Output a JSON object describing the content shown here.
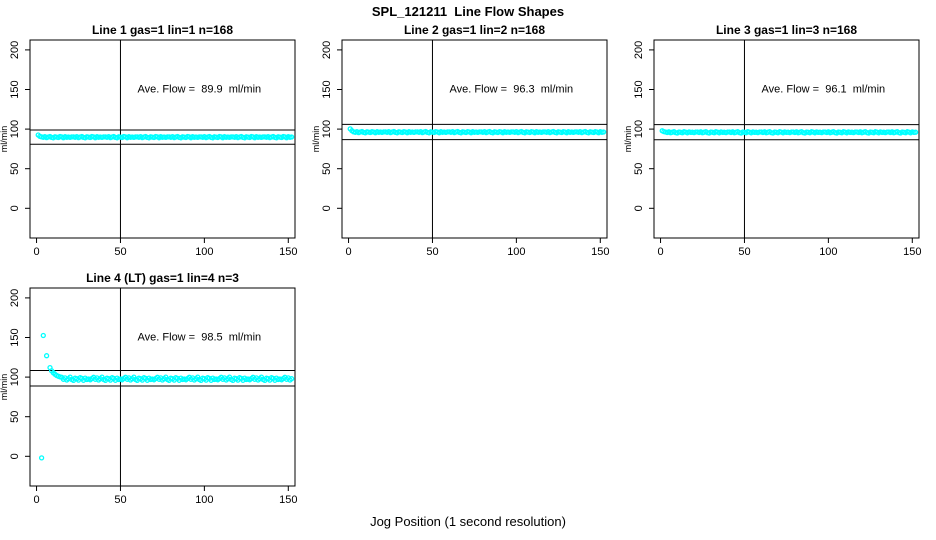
{
  "figure": {
    "title": "SPL_121211  Line Flow Shapes",
    "xlabel": "Jog Position (1 second resolution)",
    "ylabel": "ml/min",
    "point_color": "#00FFFF",
    "axis_color": "#000000",
    "background_color": "#ffffff"
  },
  "chart_data": [
    {
      "type": "scatter",
      "title": "Line 1 gas=1 lin=1 n=168",
      "annotation": "Ave. Flow =  89.9  ml/min",
      "avg_flow_ml_min": 89.9,
      "grid_row": 0,
      "grid_col": 0,
      "xlim": [
        -3.9,
        154.0
      ],
      "ylim": [
        -37.5,
        212.5
      ],
      "x_ticks": [
        0,
        50,
        100,
        150
      ],
      "y_ticks": [
        0,
        50,
        100,
        150,
        200
      ],
      "vline_x": 50,
      "hlines": [
        98.9,
        80.9
      ],
      "annotation_at": {
        "x": 97,
        "y": 146
      },
      "x_start": 1,
      "x_step": 1,
      "y": [
        92.5,
        90.8,
        90.2,
        89.6,
        90.5,
        89.3,
        90.0,
        90.7,
        89.5,
        89.0,
        90.3,
        89.9,
        89.4,
        90.6,
        90.1,
        89.2,
        90.4,
        89.7,
        90.0,
        89.5,
        90.2,
        90.2,
        89.6,
        90.5,
        89.3,
        90.0,
        90.7,
        89.5,
        89.0,
        90.3,
        89.9,
        89.4,
        90.6,
        90.1,
        89.2,
        90.4,
        89.7,
        90.0,
        89.5,
        90.2,
        90.2,
        89.6,
        90.5,
        89.3,
        90.0,
        90.7,
        89.5,
        89.0,
        90.3,
        89.9,
        89.4,
        90.6,
        90.1,
        89.2,
        90.4,
        89.7,
        90.0,
        89.5,
        90.2,
        90.2,
        89.6,
        90.5,
        89.3,
        90.0,
        90.7,
        89.5,
        89.0,
        90.3,
        89.9,
        89.4,
        90.6,
        90.1,
        89.2,
        90.4,
        89.7,
        90.0,
        89.5,
        90.2,
        90.2,
        89.6,
        90.5,
        89.3,
        90.0,
        90.7,
        89.5,
        89.0,
        90.3,
        89.9,
        89.4,
        90.6,
        90.1,
        89.2,
        90.4,
        89.7,
        90.0,
        89.5,
        90.2,
        90.2,
        89.6,
        90.5,
        89.3,
        90.0,
        90.7,
        89.5,
        89.0,
        90.3,
        89.9,
        89.4,
        90.6,
        90.1,
        89.2,
        90.4,
        89.7,
        90.0,
        89.5,
        90.2,
        90.2,
        89.6,
        90.5,
        89.3,
        90.0,
        90.7,
        89.5,
        89.0,
        90.3,
        89.9,
        89.4,
        90.6,
        90.1,
        89.2,
        90.4,
        89.7,
        90.0,
        89.5,
        90.2,
        90.2,
        89.6,
        90.5,
        89.3,
        90.0,
        90.7,
        89.5,
        89.0,
        90.3,
        89.9,
        89.4,
        90.6,
        90.1,
        89.2,
        90.4,
        89.7,
        90.0
      ]
    },
    {
      "type": "scatter",
      "title": "Line 2 gas=1 lin=2 n=168",
      "annotation": "Ave. Flow =  96.3  ml/min",
      "avg_flow_ml_min": 96.3,
      "grid_row": 0,
      "grid_col": 1,
      "xlim": [
        -3.9,
        154.0
      ],
      "ylim": [
        -37.5,
        212.5
      ],
      "x_ticks": [
        0,
        50,
        100,
        150
      ],
      "y_ticks": [
        0,
        50,
        100,
        150,
        200
      ],
      "vline_x": 50,
      "hlines": [
        105.9,
        86.7
      ],
      "annotation_at": {
        "x": 97,
        "y": 146
      },
      "x_start": 1,
      "x_step": 1,
      "y": [
        100.2,
        98.0,
        96.5,
        95.9,
        96.8,
        95.6,
        96.3,
        97.0,
        95.8,
        95.3,
        96.6,
        96.2,
        95.7,
        96.9,
        96.4,
        95.5,
        96.7,
        96.0,
        96.3,
        95.8,
        96.5,
        96.5,
        95.9,
        96.8,
        95.6,
        96.3,
        97.0,
        95.8,
        95.3,
        96.6,
        96.2,
        95.7,
        96.9,
        96.4,
        95.5,
        96.7,
        96.0,
        96.3,
        95.8,
        96.5,
        96.5,
        95.9,
        96.8,
        95.6,
        96.3,
        97.0,
        95.8,
        95.3,
        96.6,
        96.2,
        95.7,
        96.9,
        96.4,
        95.5,
        96.7,
        96.0,
        96.3,
        95.8,
        96.5,
        96.5,
        95.9,
        96.8,
        95.6,
        96.3,
        97.0,
        95.8,
        95.3,
        96.6,
        96.2,
        95.7,
        96.9,
        96.4,
        95.5,
        96.7,
        96.0,
        96.3,
        95.8,
        96.5,
        96.5,
        95.9,
        96.8,
        95.6,
        96.3,
        97.0,
        95.8,
        95.3,
        96.6,
        96.2,
        95.7,
        96.9,
        96.4,
        95.5,
        96.7,
        96.0,
        96.3,
        95.8,
        96.5,
        96.5,
        95.9,
        96.8,
        95.6,
        96.3,
        97.0,
        95.8,
        95.3,
        96.6,
        96.2,
        95.7,
        96.9,
        96.4,
        95.5,
        96.7,
        96.0,
        96.3,
        95.8,
        96.5,
        96.5,
        95.9,
        96.8,
        95.6,
        96.3,
        97.0,
        95.8,
        95.3,
        96.6,
        96.2,
        95.7,
        96.9,
        96.4,
        95.5,
        96.7,
        96.0,
        96.3,
        95.8,
        96.5,
        96.5,
        95.9,
        96.8,
        95.6,
        96.3,
        97.0,
        95.8,
        95.3,
        96.6,
        96.2,
        95.7,
        96.9,
        96.4,
        95.5,
        96.7,
        96.0,
        96.3
      ]
    },
    {
      "type": "scatter",
      "title": "Line 3 gas=1 lin=3 n=168",
      "annotation": "Ave. Flow =  96.1  ml/min",
      "avg_flow_ml_min": 96.1,
      "grid_row": 0,
      "grid_col": 2,
      "xlim": [
        -3.9,
        154.0
      ],
      "ylim": [
        -37.5,
        212.5
      ],
      "x_ticks": [
        0,
        50,
        100,
        150
      ],
      "y_ticks": [
        0,
        50,
        100,
        150,
        200
      ],
      "vline_x": 50,
      "hlines": [
        105.7,
        86.5
      ],
      "annotation_at": {
        "x": 97,
        "y": 146
      },
      "x_start": 1,
      "x_step": 1,
      "y": [
        97.8,
        96.9,
        96.3,
        95.7,
        96.6,
        95.4,
        96.1,
        96.8,
        95.6,
        95.1,
        96.4,
        96.0,
        95.5,
        96.7,
        96.2,
        95.3,
        96.5,
        95.8,
        96.1,
        95.6,
        96.3,
        96.3,
        95.7,
        96.6,
        95.4,
        96.1,
        96.8,
        95.6,
        95.1,
        96.4,
        96.0,
        95.5,
        96.7,
        96.2,
        95.3,
        96.5,
        95.8,
        96.1,
        95.6,
        96.3,
        96.3,
        95.7,
        96.6,
        95.4,
        96.1,
        96.8,
        95.6,
        95.1,
        96.4,
        96.0,
        95.5,
        96.7,
        96.2,
        95.3,
        96.5,
        95.8,
        96.1,
        95.6,
        96.3,
        96.3,
        95.7,
        96.6,
        95.4,
        96.1,
        96.8,
        95.6,
        95.1,
        96.4,
        96.0,
        95.5,
        96.7,
        96.2,
        95.3,
        96.5,
        95.8,
        96.1,
        95.6,
        96.3,
        96.3,
        95.7,
        96.6,
        95.4,
        96.1,
        96.8,
        95.6,
        95.1,
        96.4,
        96.0,
        95.5,
        96.7,
        96.2,
        95.3,
        96.5,
        95.8,
        96.1,
        95.6,
        96.3,
        96.3,
        95.7,
        96.6,
        95.4,
        96.1,
        96.8,
        95.6,
        95.1,
        96.4,
        96.0,
        95.5,
        96.7,
        96.2,
        95.3,
        96.5,
        95.8,
        96.1,
        95.6,
        96.3,
        96.3,
        95.7,
        96.6,
        95.4,
        96.1,
        96.8,
        95.6,
        95.1,
        96.4,
        96.0,
        95.5,
        96.7,
        96.2,
        95.3,
        96.5,
        95.8,
        96.1,
        95.6,
        96.3,
        96.3,
        95.7,
        96.6,
        95.4,
        96.1,
        96.8,
        95.6,
        95.1,
        96.4,
        96.0,
        95.5,
        96.7,
        96.2,
        95.3,
        96.5,
        95.8,
        96.1
      ]
    },
    {
      "type": "scatter",
      "title": "Line 4 (LT) gas=1 lin=4 n=3",
      "annotation": "Ave. Flow =  98.5  ml/min",
      "avg_flow_ml_min": 98.5,
      "grid_row": 1,
      "grid_col": 0,
      "xlim": [
        -3.9,
        154.0
      ],
      "ylim": [
        -37.5,
        212.5
      ],
      "x_ticks": [
        0,
        50,
        100,
        150
      ],
      "y_ticks": [
        0,
        50,
        100,
        150,
        200
      ],
      "vline_x": 50,
      "hlines": [
        108.4,
        88.7
      ],
      "annotation_at": {
        "x": 97,
        "y": 146
      },
      "x_start": 1,
      "x_step": 1,
      "y": [
        null,
        null,
        -2.0,
        152.5,
        null,
        127.0,
        null,
        112.0,
        108.0,
        105.5,
        103.5,
        102.0,
        101.0,
        100.2,
        99.8,
        97.2,
        99.0,
        96.4,
        98.0,
        100.0,
        97.0,
        95.8,
        98.6,
        98.0,
        96.2,
        99.2,
        98.4,
        96.0,
        98.8,
        97.0,
        97.6,
        96.6,
        98.2,
        99.8,
        97.2,
        99.0,
        96.4,
        98.0,
        100.0,
        97.0,
        95.8,
        98.6,
        98.0,
        96.2,
        99.2,
        98.4,
        96.0,
        98.8,
        97.0,
        97.6,
        96.6,
        98.2,
        99.8,
        97.2,
        99.0,
        96.4,
        98.0,
        100.0,
        97.0,
        95.8,
        98.6,
        98.0,
        96.2,
        99.2,
        98.4,
        96.0,
        98.8,
        97.0,
        97.6,
        96.6,
        98.2,
        99.8,
        97.2,
        99.0,
        96.4,
        98.0,
        100.0,
        97.0,
        95.8,
        98.6,
        98.0,
        96.2,
        99.2,
        98.4,
        96.0,
        98.8,
        97.0,
        97.6,
        96.6,
        98.2,
        99.8,
        97.2,
        99.0,
        96.4,
        98.0,
        100.0,
        97.0,
        95.8,
        98.6,
        98.0,
        96.2,
        99.2,
        98.4,
        96.0,
        98.8,
        97.0,
        97.6,
        96.6,
        98.2,
        99.8,
        97.2,
        99.0,
        96.4,
        98.0,
        100.0,
        97.0,
        95.8,
        98.6,
        98.0,
        96.2,
        99.2,
        98.4,
        96.0,
        98.8,
        97.0,
        97.6,
        96.6,
        98.2,
        99.8,
        97.2,
        99.0,
        96.4,
        98.0,
        100.0,
        97.0,
        95.8,
        98.6,
        98.0,
        96.2,
        99.2,
        98.4,
        96.0,
        98.8,
        97.0,
        97.6,
        96.6,
        98.2,
        99.8,
        97.2,
        99.0,
        96.4,
        98.0
      ]
    }
  ]
}
